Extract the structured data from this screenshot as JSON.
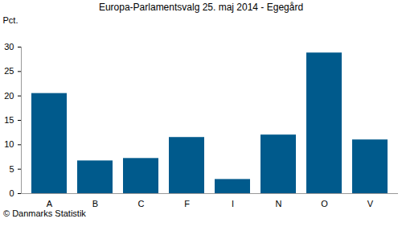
{
  "chart_data": {
    "type": "bar",
    "title": "Europa-Parlamentsvalg 25. maj 2014 - Egegård",
    "y_label": "Pct.",
    "caption": "© Danmarks Statistik",
    "categories": [
      "A",
      "B",
      "C",
      "F",
      "I",
      "N",
      "O",
      "V"
    ],
    "values": [
      20.5,
      6.7,
      7.2,
      11.5,
      2.9,
      12.0,
      28.8,
      11.0
    ],
    "color": "#005a8c",
    "ylim": [
      0,
      30
    ],
    "yticks": [
      0,
      5,
      10,
      15,
      20,
      25,
      30
    ],
    "grid": false
  }
}
